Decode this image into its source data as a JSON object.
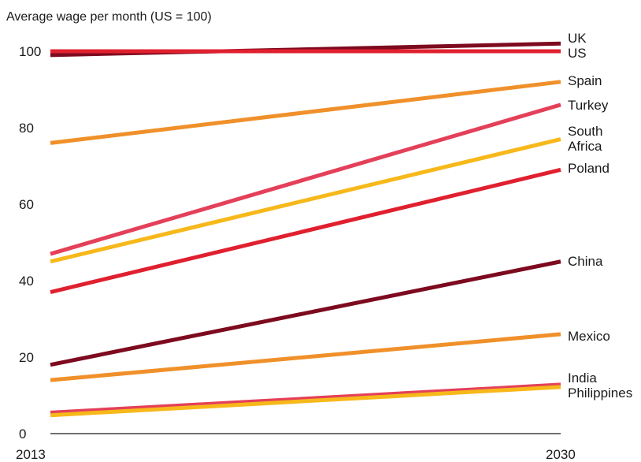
{
  "chart_data": {
    "type": "line",
    "ylabel": "Average wage per month (US = 100)",
    "x": [
      "2013",
      "2030"
    ],
    "ylim": [
      0,
      100
    ],
    "yticks": [
      "0",
      "20",
      "40",
      "60",
      "80",
      "100"
    ],
    "grid": false,
    "series": [
      {
        "name": "UK",
        "label_lines": [
          "UK"
        ],
        "values": [
          99,
          102
        ],
        "color": "#7d0a1e"
      },
      {
        "name": "US",
        "label_lines": [
          "US"
        ],
        "values": [
          100,
          100
        ],
        "color": "#e0202f"
      },
      {
        "name": "Spain",
        "label_lines": [
          "Spain"
        ],
        "values": [
          76,
          92
        ],
        "color": "#f0902a"
      },
      {
        "name": "Turkey",
        "label_lines": [
          "Turkey"
        ],
        "values": [
          47,
          86
        ],
        "color": "#e44059"
      },
      {
        "name": "South Africa",
        "label_lines": [
          "South",
          "Africa"
        ],
        "values": [
          45,
          77
        ],
        "color": "#f7b81a"
      },
      {
        "name": "Poland",
        "label_lines": [
          "Poland"
        ],
        "values": [
          37,
          69
        ],
        "color": "#e0202f"
      },
      {
        "name": "China",
        "label_lines": [
          "China"
        ],
        "values": [
          18,
          45
        ],
        "color": "#7d0a1e"
      },
      {
        "name": "Mexico",
        "label_lines": [
          "Mexico"
        ],
        "values": [
          14,
          26
        ],
        "color": "#f0902a"
      },
      {
        "name": "India",
        "label_lines": [
          "India"
        ],
        "values": [
          5.5,
          12.8
        ],
        "color": "#e44059"
      },
      {
        "name": "Philippines",
        "label_lines": [
          "Philippines"
        ],
        "values": [
          4.8,
          12.2
        ],
        "color": "#f7b81a"
      }
    ]
  }
}
